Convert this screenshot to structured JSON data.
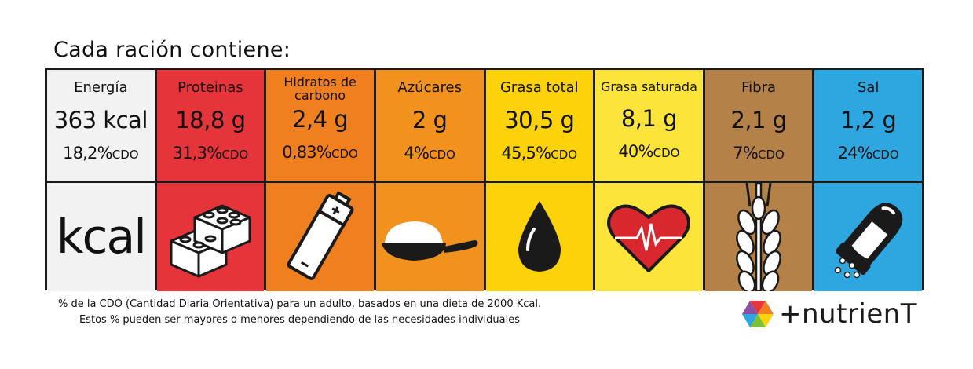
{
  "heading": "Cada ración contiene:",
  "cdo_unit": "CDO",
  "nutrients": [
    {
      "label": "Energía",
      "amount": "363 kcal",
      "cdo": "18,2%",
      "color": "#f2f2f2",
      "icon": "kcal-icon",
      "icon_text": "kcal"
    },
    {
      "label": "Proteinas",
      "amount": "18,8 g",
      "cdo": "31,3%",
      "color": "#e5353a",
      "icon": "lego-bricks-icon"
    },
    {
      "label": "Hidratos de carbono",
      "amount": "2,4 g",
      "cdo": "0,83%",
      "color": "#f0801f",
      "icon": "battery-icon"
    },
    {
      "label": "Azúcares",
      "amount": "2 g",
      "cdo": "4%",
      "color": "#f2921e",
      "icon": "sugar-spoon-icon"
    },
    {
      "label": "Grasa total",
      "amount": "30,5 g",
      "cdo": "45,5%",
      "color": "#fcd30a",
      "icon": "oil-drop-icon"
    },
    {
      "label": "Grasa saturada",
      "amount": "8,1 g",
      "cdo": "40%",
      "color": "#fde43a",
      "icon": "heart-pulse-icon"
    },
    {
      "label": "Fibra",
      "amount": "2,1 g",
      "cdo": "7%",
      "color": "#b48148",
      "icon": "wheat-icon"
    },
    {
      "label": "Sal",
      "amount": "1,2 g",
      "cdo": "24%",
      "color": "#2ea7e0",
      "icon": "salt-shaker-icon"
    }
  ],
  "footnote": {
    "line1": "% de la CDO (Cantidad Diaria Orientativa) para un adulto, basados en una dieta de 2000 Kcal.",
    "line2": "Estos % pueden ser mayores o menores dependiendo de las necesidades individuales"
  },
  "brand": {
    "name": "+nutrienT",
    "logo_icon": "hexagon-logo-icon"
  }
}
